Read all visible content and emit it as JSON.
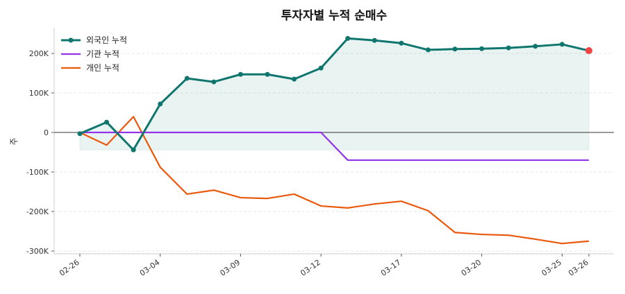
{
  "chart_data": {
    "type": "line",
    "title": "투자자별 누적 순매수",
    "ylabel": "주",
    "xlabel": "",
    "ylim": [
      -307000,
      265000
    ],
    "yticks": [
      200000,
      100000,
      0,
      -100000,
      -200000,
      -300000
    ],
    "ytick_labels": [
      "200K",
      "100K",
      "0",
      "-100K",
      "-200K",
      "-300K"
    ],
    "x": [
      "02-26",
      "02-27",
      "03-03",
      "03-04",
      "03-05",
      "03-06",
      "03-09",
      "03-10",
      "03-11",
      "03-12",
      "03-13",
      "03-16",
      "03-17",
      "03-18",
      "03-19",
      "03-20",
      "03-23",
      "03-24",
      "03-25",
      "03-26"
    ],
    "xtick_labels": [
      "02-26",
      "03-04",
      "03-09",
      "03-12",
      "03-17",
      "03-20",
      "03-25",
      "03-26"
    ],
    "grid": "horizontal dashed",
    "legend": "top-left",
    "series": [
      {
        "name": "외국인 누적",
        "color": "#0f766e",
        "markers": true,
        "fill": true,
        "last_point_color": "#ef4444",
        "values": [
          -3000,
          26000,
          -44000,
          72000,
          137000,
          128000,
          147000,
          147000,
          135000,
          163000,
          238000,
          233000,
          226000,
          209000,
          211000,
          212000,
          214000,
          218000,
          223000,
          207000
        ]
      },
      {
        "name": "기관 누적",
        "color": "#9333ea",
        "markers": false,
        "values": [
          0,
          0,
          0,
          0,
          0,
          0,
          0,
          0,
          0,
          0,
          -70000,
          -70000,
          -70000,
          -70000,
          -70000,
          -70000,
          -70000,
          -70000,
          -70000,
          -70000
        ]
      },
      {
        "name": "개인 누적",
        "color": "#ea580c",
        "markers": false,
        "values": [
          0,
          -32000,
          40000,
          -88000,
          -156000,
          -146000,
          -165000,
          -167000,
          -156000,
          -186000,
          -191000,
          -181000,
          -174000,
          -198000,
          -253000,
          -258000,
          -260000,
          -270000,
          -281000,
          -275000
        ]
      }
    ]
  }
}
